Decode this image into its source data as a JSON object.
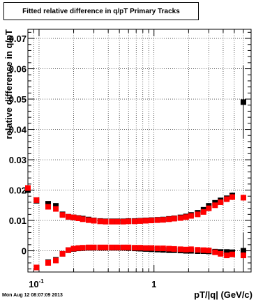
{
  "title": "Fitted relative difference in q/pT  Primary Tracks",
  "timestamp": "Mon Aug 12 08:07:09 2013",
  "chart_data": {
    "type": "scatter",
    "title": "Fitted relative difference in q/pT  Primary Tracks",
    "xlabel": "pT/|q| (GeV/c)",
    "ylabel": "relative difference in q/pT",
    "x_scale": "log",
    "xlim": [
      0.08,
      7.0
    ],
    "ylim": [
      -0.007,
      0.073
    ],
    "grid": true,
    "x_ticks": [
      {
        "value": 0.1,
        "base": "10",
        "exp": "-1"
      },
      {
        "value": 1,
        "label": "1"
      }
    ],
    "y_ticks": [
      {
        "value": 0,
        "label": "0"
      },
      {
        "value": 0.01,
        "label": "0.01"
      },
      {
        "value": 0.02,
        "label": "0.02"
      },
      {
        "value": 0.03,
        "label": "0.03"
      },
      {
        "value": 0.04,
        "label": "0.04"
      },
      {
        "value": 0.05,
        "label": "0.05"
      },
      {
        "value": 0.06,
        "label": "0.06"
      },
      {
        "value": 0.07,
        "label": "0.07"
      }
    ],
    "series": [
      {
        "color": "#000000",
        "x": [
          0.08,
          0.095,
          0.12,
          0.14,
          0.16,
          0.18,
          0.2,
          0.22,
          0.24,
          0.27,
          0.3,
          0.34,
          0.38,
          0.43,
          0.48,
          0.54,
          0.6,
          0.68,
          0.76,
          0.85,
          0.95,
          1.07,
          1.2,
          1.35,
          1.5,
          1.7,
          1.9,
          2.1,
          2.4,
          2.7,
          3.0,
          3.4,
          3.8,
          4.3,
          4.8,
          6.0
        ],
        "y": [
          0.02,
          0.0165,
          0.0155,
          0.0148,
          0.012,
          0.0112,
          0.011,
          0.0108,
          0.0106,
          0.0103,
          0.01,
          0.0098,
          0.0097,
          0.0097,
          0.0097,
          0.0097,
          0.0098,
          0.0098,
          0.0099,
          0.01,
          0.0101,
          0.0102,
          0.0103,
          0.0105,
          0.0107,
          0.011,
          0.0113,
          0.0118,
          0.0125,
          0.0135,
          0.0148,
          0.0158,
          0.0166,
          0.0173,
          0.0182,
          0.049
        ],
        "yerr": [
          0.0005,
          0.0004,
          0.0004,
          0.0004,
          0.0003,
          0.0002,
          0.0002,
          0.0002,
          0.0002,
          0.0002,
          0.0002,
          0.0002,
          0.0002,
          0.0002,
          0.0002,
          0.0002,
          0.0002,
          0.0002,
          0.0002,
          0.0002,
          0.0002,
          0.0002,
          0.0002,
          0.0003,
          0.0003,
          0.0003,
          0.0003,
          0.0004,
          0.0004,
          0.0005,
          0.0005,
          0.0006,
          0.0007,
          0.0008,
          0.001,
          0.012
        ]
      },
      {
        "color": "#ff0000",
        "x": [
          0.08,
          0.095,
          0.12,
          0.14,
          0.16,
          0.18,
          0.2,
          0.22,
          0.24,
          0.27,
          0.3,
          0.34,
          0.38,
          0.43,
          0.48,
          0.54,
          0.6,
          0.68,
          0.76,
          0.85,
          0.95,
          1.07,
          1.2,
          1.35,
          1.5,
          1.7,
          1.9,
          2.1,
          2.4,
          2.7,
          3.0,
          3.4,
          3.8,
          4.3,
          4.8,
          6.0
        ],
        "y": [
          0.0207,
          0.0167,
          0.0145,
          0.0138,
          0.0118,
          0.0112,
          0.011,
          0.0107,
          0.0104,
          0.0101,
          0.0099,
          0.0097,
          0.0096,
          0.0096,
          0.0096,
          0.0096,
          0.0097,
          0.0097,
          0.0098,
          0.0099,
          0.01,
          0.0101,
          0.0102,
          0.0104,
          0.0106,
          0.0108,
          0.0111,
          0.0115,
          0.012,
          0.0128,
          0.014,
          0.015,
          0.016,
          0.017,
          0.0177,
          0.0175
        ],
        "yerr": [
          0.0005,
          0.0004,
          0.0004,
          0.0004,
          0.0003,
          0.0002,
          0.0002,
          0.0002,
          0.0002,
          0.0002,
          0.0002,
          0.0002,
          0.0002,
          0.0002,
          0.0002,
          0.0002,
          0.0002,
          0.0002,
          0.0002,
          0.0002,
          0.0002,
          0.0002,
          0.0002,
          0.0003,
          0.0003,
          0.0003,
          0.0003,
          0.0004,
          0.0004,
          0.0005,
          0.0005,
          0.0006,
          0.0007,
          0.0008,
          0.001,
          0.001
        ]
      },
      {
        "color": "#000000",
        "x": [
          0.12,
          0.14,
          0.16,
          0.18,
          0.2,
          0.22,
          0.24,
          0.27,
          0.3,
          0.34,
          0.38,
          0.43,
          0.48,
          0.54,
          0.6,
          0.68,
          0.76,
          0.85,
          0.95,
          1.07,
          1.2,
          1.35,
          1.5,
          1.7,
          1.9,
          2.1,
          2.4,
          2.7,
          3.0,
          3.4,
          3.8,
          4.3,
          4.8,
          6.0
        ],
        "y": [
          -0.0038,
          -0.003,
          -0.001,
          0.0002,
          0.0006,
          0.0008,
          0.0009,
          0.001,
          0.001,
          0.001,
          0.001,
          0.001,
          0.001,
          0.001,
          0.0009,
          0.0008,
          0.0007,
          0.0006,
          0.0005,
          0.0004,
          0.0003,
          0.0002,
          0.0002,
          0.0001,
          0.0,
          0.0,
          -0.0001,
          -0.0001,
          -0.0002,
          -0.0003,
          -0.0004,
          -0.0004,
          -0.0005,
          0.0
        ],
        "yerr": [
          0.0005,
          0.0004,
          0.0003,
          0.0002,
          0.0002,
          0.0002,
          0.0002,
          0.0002,
          0.0002,
          0.0002,
          0.0002,
          0.0002,
          0.0002,
          0.0002,
          0.0002,
          0.0002,
          0.0002,
          0.0002,
          0.0002,
          0.0002,
          0.0002,
          0.0002,
          0.0003,
          0.0003,
          0.0003,
          0.0004,
          0.0004,
          0.0005,
          0.0005,
          0.0006,
          0.0007,
          0.0008,
          0.0009,
          0.006
        ]
      },
      {
        "color": "#ff0000",
        "x": [
          0.095,
          0.12,
          0.14,
          0.16,
          0.18,
          0.2,
          0.22,
          0.24,
          0.27,
          0.3,
          0.34,
          0.38,
          0.43,
          0.48,
          0.54,
          0.6,
          0.68,
          0.76,
          0.85,
          0.95,
          1.07,
          1.2,
          1.35,
          1.5,
          1.7,
          1.9,
          2.1,
          2.4,
          2.7,
          3.0,
          3.4,
          3.8,
          4.3,
          4.8,
          6.0
        ],
        "y": [
          -0.0055,
          -0.004,
          -0.0032,
          -0.001,
          0.0002,
          0.0007,
          0.0009,
          0.001,
          0.0011,
          0.0011,
          0.0011,
          0.0011,
          0.0011,
          0.0011,
          0.0011,
          0.0011,
          0.001,
          0.001,
          0.0009,
          0.0009,
          0.0008,
          0.0008,
          0.0007,
          0.0006,
          0.0005,
          0.0004,
          0.0005,
          0.0003,
          0.0002,
          0.0001,
          -0.0005,
          -0.001,
          -0.0015,
          -0.0012,
          -0.0015
        ],
        "yerr": [
          0.0005,
          0.0005,
          0.0004,
          0.0003,
          0.0002,
          0.0002,
          0.0002,
          0.0002,
          0.0002,
          0.0002,
          0.0002,
          0.0002,
          0.0002,
          0.0002,
          0.0002,
          0.0002,
          0.0002,
          0.0002,
          0.0002,
          0.0002,
          0.0002,
          0.0002,
          0.0002,
          0.0003,
          0.0003,
          0.0003,
          0.0004,
          0.0004,
          0.0005,
          0.0005,
          0.0006,
          0.0007,
          0.0008,
          0.0009,
          0.001
        ]
      }
    ]
  }
}
